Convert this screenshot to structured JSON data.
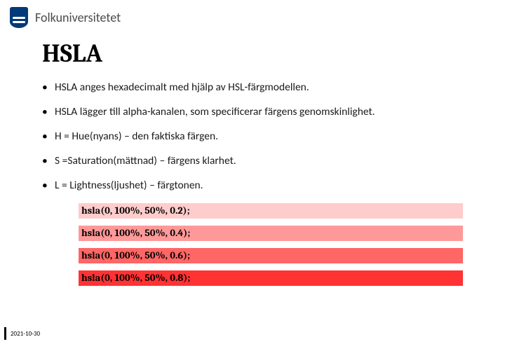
{
  "header": {
    "org_name": "Folkuniversitetet"
  },
  "title": "HSLA",
  "bullets": [
    "HSLA anges hexadecimalt med hjälp av HSL-färgmodellen.",
    "HSLA lägger till alpha-kanalen, som specificerar färgens genomskinlighet.",
    "H = Hue(nyans) – den faktiska färgen.",
    "S =Saturation(mättnad) – färgens klarhet.",
    "L = Lightness(ljushet) – färgtonen."
  ],
  "swatches": [
    {
      "label": "hsla(0, 100%, 50%, 0.2);",
      "color": "hsla(0,100%,50%,0.2)"
    },
    {
      "label": "hsla(0, 100%, 50%, 0.4);",
      "color": "hsla(0,100%,50%,0.4)"
    },
    {
      "label": "hsla(0, 100%, 50%, 0.6);",
      "color": "hsla(0,100%,50%,0.6)"
    },
    {
      "label": "hsla(0, 100%, 50%, 0.8);",
      "color": "hsla(0,100%,50%,0.8)"
    }
  ],
  "footer": {
    "date": "2021-10-30"
  }
}
